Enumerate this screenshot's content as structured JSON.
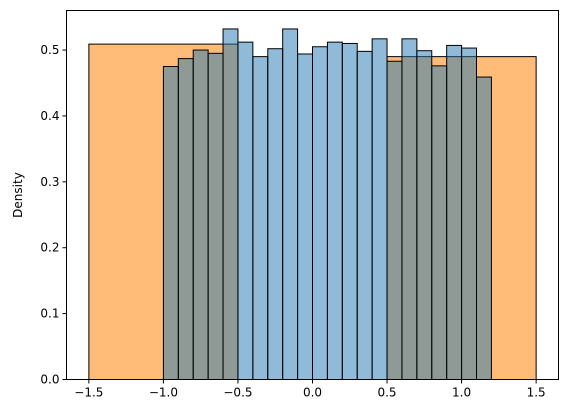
{
  "chart_data": {
    "type": "bar",
    "title": "",
    "xlabel": "",
    "ylabel": "Density",
    "xlim": [
      -1.65,
      1.65
    ],
    "ylim": [
      0,
      0.56
    ],
    "xticks": [
      -1.5,
      -1.0,
      -0.5,
      0.0,
      0.5,
      1.0,
      1.5
    ],
    "xtick_labels": [
      "−1.5",
      "−1.0",
      "−0.5",
      "0.0",
      "0.5",
      "1.0",
      "1.5"
    ],
    "yticks": [
      0.0,
      0.1,
      0.2,
      0.3,
      0.4,
      0.5
    ],
    "ytick_labels": [
      "0.0",
      "0.1",
      "0.2",
      "0.3",
      "0.4",
      "0.5"
    ],
    "grid": false,
    "series": [
      {
        "color": "#ffbb78",
        "alpha": 1.0,
        "bins": [
          {
            "x0": -1.5,
            "x1": -0.5,
            "value": 0.509
          },
          {
            "x0": 0.5,
            "x1": 1.5,
            "value": 0.49
          }
        ]
      },
      {
        "color": "#1f77b4",
        "alpha": 0.5,
        "bins": [
          {
            "x0": -1.0,
            "x1": -0.9,
            "value": 0.475
          },
          {
            "x0": -0.9,
            "x1": -0.8,
            "value": 0.487
          },
          {
            "x0": -0.8,
            "x1": -0.7,
            "value": 0.5
          },
          {
            "x0": -0.7,
            "x1": -0.6,
            "value": 0.495
          },
          {
            "x0": -0.6,
            "x1": -0.5,
            "value": 0.532
          },
          {
            "x0": -0.5,
            "x1": -0.4,
            "value": 0.512
          },
          {
            "x0": -0.4,
            "x1": -0.3,
            "value": 0.49
          },
          {
            "x0": -0.3,
            "x1": -0.2,
            "value": 0.502
          },
          {
            "x0": -0.2,
            "x1": -0.1,
            "value": 0.532
          },
          {
            "x0": -0.1,
            "x1": 0.0,
            "value": 0.494
          },
          {
            "x0": 0.0,
            "x1": 0.1,
            "value": 0.505
          },
          {
            "x0": 0.1,
            "x1": 0.2,
            "value": 0.512
          },
          {
            "x0": 0.2,
            "x1": 0.3,
            "value": 0.51
          },
          {
            "x0": 0.3,
            "x1": 0.4,
            "value": 0.498
          },
          {
            "x0": 0.4,
            "x1": 0.5,
            "value": 0.517
          },
          {
            "x0": 0.5,
            "x1": 0.6,
            "value": 0.483
          },
          {
            "x0": 0.6,
            "x1": 0.7,
            "value": 0.517
          },
          {
            "x0": 0.7,
            "x1": 0.8,
            "value": 0.499
          },
          {
            "x0": 0.8,
            "x1": 0.9,
            "value": 0.476
          },
          {
            "x0": 0.9,
            "x1": 1.0,
            "value": 0.507
          },
          {
            "x0": 1.0,
            "x1": 1.1,
            "value": 0.503
          },
          {
            "x0": 1.1,
            "x1": 1.2,
            "value": 0.459
          }
        ]
      }
    ]
  }
}
